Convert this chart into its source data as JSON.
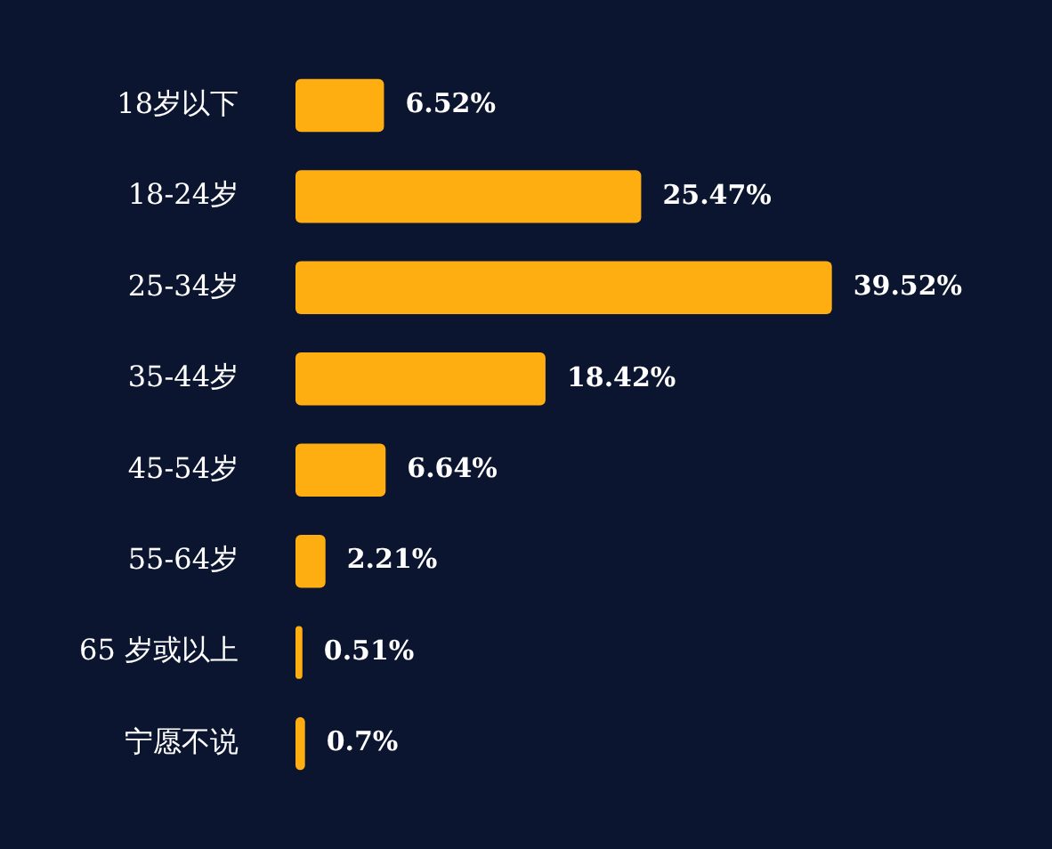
{
  "chart_data": {
    "type": "bar",
    "orientation": "horizontal",
    "data_labels": true,
    "categories": [
      "18岁以下",
      "18-24岁",
      "25-34岁",
      "35-44岁",
      "45-54岁",
      "55-64岁",
      "65 岁或以上",
      "宁愿不说"
    ],
    "values": [
      6.52,
      25.47,
      39.52,
      18.42,
      6.64,
      2.21,
      0.51,
      0.7
    ],
    "value_labels": [
      "6.52%",
      "25.47%",
      "39.52%",
      "18.42%",
      "6.64%",
      "2.21%",
      "0.51%",
      "0.7%"
    ],
    "color": "#ffae12"
  }
}
